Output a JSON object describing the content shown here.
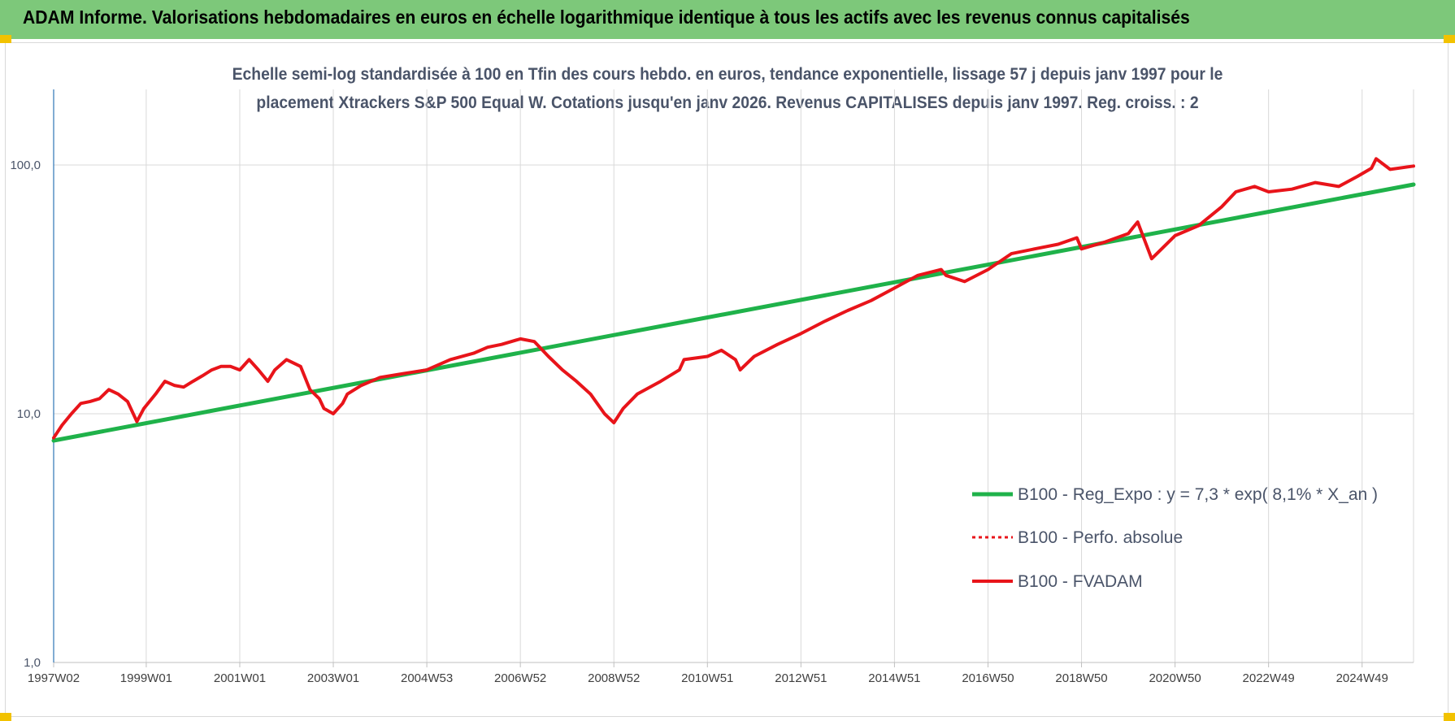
{
  "banner": {
    "title": "ADAM Informe. Valorisations hebdomadaires en euros en échelle logarithmique identique à tous les actifs avec les revenus connus capitalisés"
  },
  "chart_data": {
    "type": "line",
    "title_lines": [
      "Echelle semi-log standardisée à 100 en Tfin des cours hebdo. en euros, tendance exponentielle, lissage 57 j depuis janv 1997 pour le",
      "placement Xtrackers S&P 500 Equal W. Cotations jusqu'en janv 2026. Revenus CAPITALISES depuis janv 1997. Reg. croiss. : 2"
    ],
    "y_scale": "log",
    "ylim": [
      1,
      180
    ],
    "y_ticks": [
      {
        "value": 1,
        "label": "1,0"
      },
      {
        "value": 10,
        "label": "10,0"
      },
      {
        "value": 100,
        "label": "100,0"
      }
    ],
    "xlim": [
      1997.02,
      2026.1
    ],
    "x_ticks": [
      {
        "t": 1997.02,
        "label": "1997W02"
      },
      {
        "t": 1999.0,
        "label": "1999W01"
      },
      {
        "t": 2001.0,
        "label": "2001W01"
      },
      {
        "t": 2003.0,
        "label": "2003W01"
      },
      {
        "t": 2005.0,
        "label": "2004W53"
      },
      {
        "t": 2007.0,
        "label": "2006W52"
      },
      {
        "t": 2009.0,
        "label": "2008W52"
      },
      {
        "t": 2011.0,
        "label": "2010W51"
      },
      {
        "t": 2013.0,
        "label": "2012W51"
      },
      {
        "t": 2015.0,
        "label": "2014W51"
      },
      {
        "t": 2017.0,
        "label": "2016W50"
      },
      {
        "t": 2019.0,
        "label": "2018W50"
      },
      {
        "t": 2021.0,
        "label": "2020W50"
      },
      {
        "t": 2023.0,
        "label": "2022W49"
      },
      {
        "t": 2025.0,
        "label": "2024W49"
      }
    ],
    "grid": true,
    "legend_position": "bottom-right",
    "series": [
      {
        "name": "B100 - Reg_Expo : y = 7,3 * exp( 8,1% *  X_an )",
        "color": "#1fb24a",
        "style": "solid",
        "x": [
          1997.02,
          2026.1
        ],
        "y": [
          7.8,
          83.5
        ]
      },
      {
        "name": "B100 - Perfo. absolue",
        "color": "#e8141a",
        "style": "dotted",
        "x": [],
        "y": []
      },
      {
        "name": "B100 - FVADAM",
        "color": "#e8141a",
        "style": "solid",
        "x": [
          1997.02,
          1997.2,
          1997.4,
          1997.6,
          1997.8,
          1998.0,
          1998.2,
          1998.4,
          1998.6,
          1998.8,
          1998.95,
          1999.2,
          1999.4,
          1999.6,
          1999.8,
          2000.0,
          2000.2,
          2000.4,
          2000.6,
          2000.8,
          2001.0,
          2001.2,
          2001.4,
          2001.6,
          2001.75,
          2002.0,
          2002.3,
          2002.5,
          2002.7,
          2002.8,
          2003.0,
          2003.2,
          2003.3,
          2003.6,
          2004.0,
          2004.5,
          2005.0,
          2005.5,
          2006.0,
          2006.3,
          2006.6,
          2007.0,
          2007.3,
          2007.6,
          2007.9,
          2008.2,
          2008.5,
          2008.8,
          2009.0,
          2009.2,
          2009.5,
          2010.0,
          2010.4,
          2010.5,
          2011.0,
          2011.3,
          2011.6,
          2011.7,
          2012.0,
          2012.5,
          2013.0,
          2013.5,
          2014.0,
          2014.5,
          2015.0,
          2015.5,
          2016.0,
          2016.1,
          2016.5,
          2017.0,
          2017.5,
          2018.0,
          2018.5,
          2018.9,
          2019.0,
          2019.5,
          2020.0,
          2020.1,
          2020.2,
          2020.5,
          2021.0,
          2021.5,
          2022.0,
          2022.3,
          2022.7,
          2023.0,
          2023.5,
          2024.0,
          2024.5,
          2024.9,
          2025.2,
          2025.3,
          2025.6,
          2026.1
        ],
        "y": [
          8.0,
          9.0,
          10.0,
          11.0,
          11.2,
          11.5,
          12.5,
          12.0,
          11.2,
          9.3,
          10.5,
          12.0,
          13.5,
          13.0,
          12.8,
          13.5,
          14.2,
          15.0,
          15.5,
          15.5,
          15.0,
          16.5,
          15.0,
          13.5,
          15.0,
          16.5,
          15.5,
          12.5,
          11.5,
          10.5,
          10.0,
          11.0,
          12.0,
          13.0,
          14.0,
          14.5,
          15.0,
          16.5,
          17.5,
          18.5,
          19.0,
          20.0,
          19.5,
          17.0,
          15.0,
          13.5,
          12.0,
          10.0,
          9.2,
          10.5,
          12.0,
          13.5,
          15.0,
          16.5,
          17.0,
          18.0,
          16.5,
          15.0,
          17.0,
          19.0,
          21.0,
          23.5,
          26.0,
          28.5,
          32.0,
          36.0,
          38.0,
          36.0,
          34.0,
          38.0,
          44.0,
          46.0,
          48.0,
          51.0,
          46.0,
          49.0,
          53.0,
          56.0,
          59.0,
          42.0,
          52.0,
          57.0,
          68.0,
          78.0,
          82.0,
          78.0,
          80.0,
          85.0,
          82.0,
          90.0,
          97.0,
          106.0,
          96.0,
          99.0
        ]
      }
    ]
  }
}
